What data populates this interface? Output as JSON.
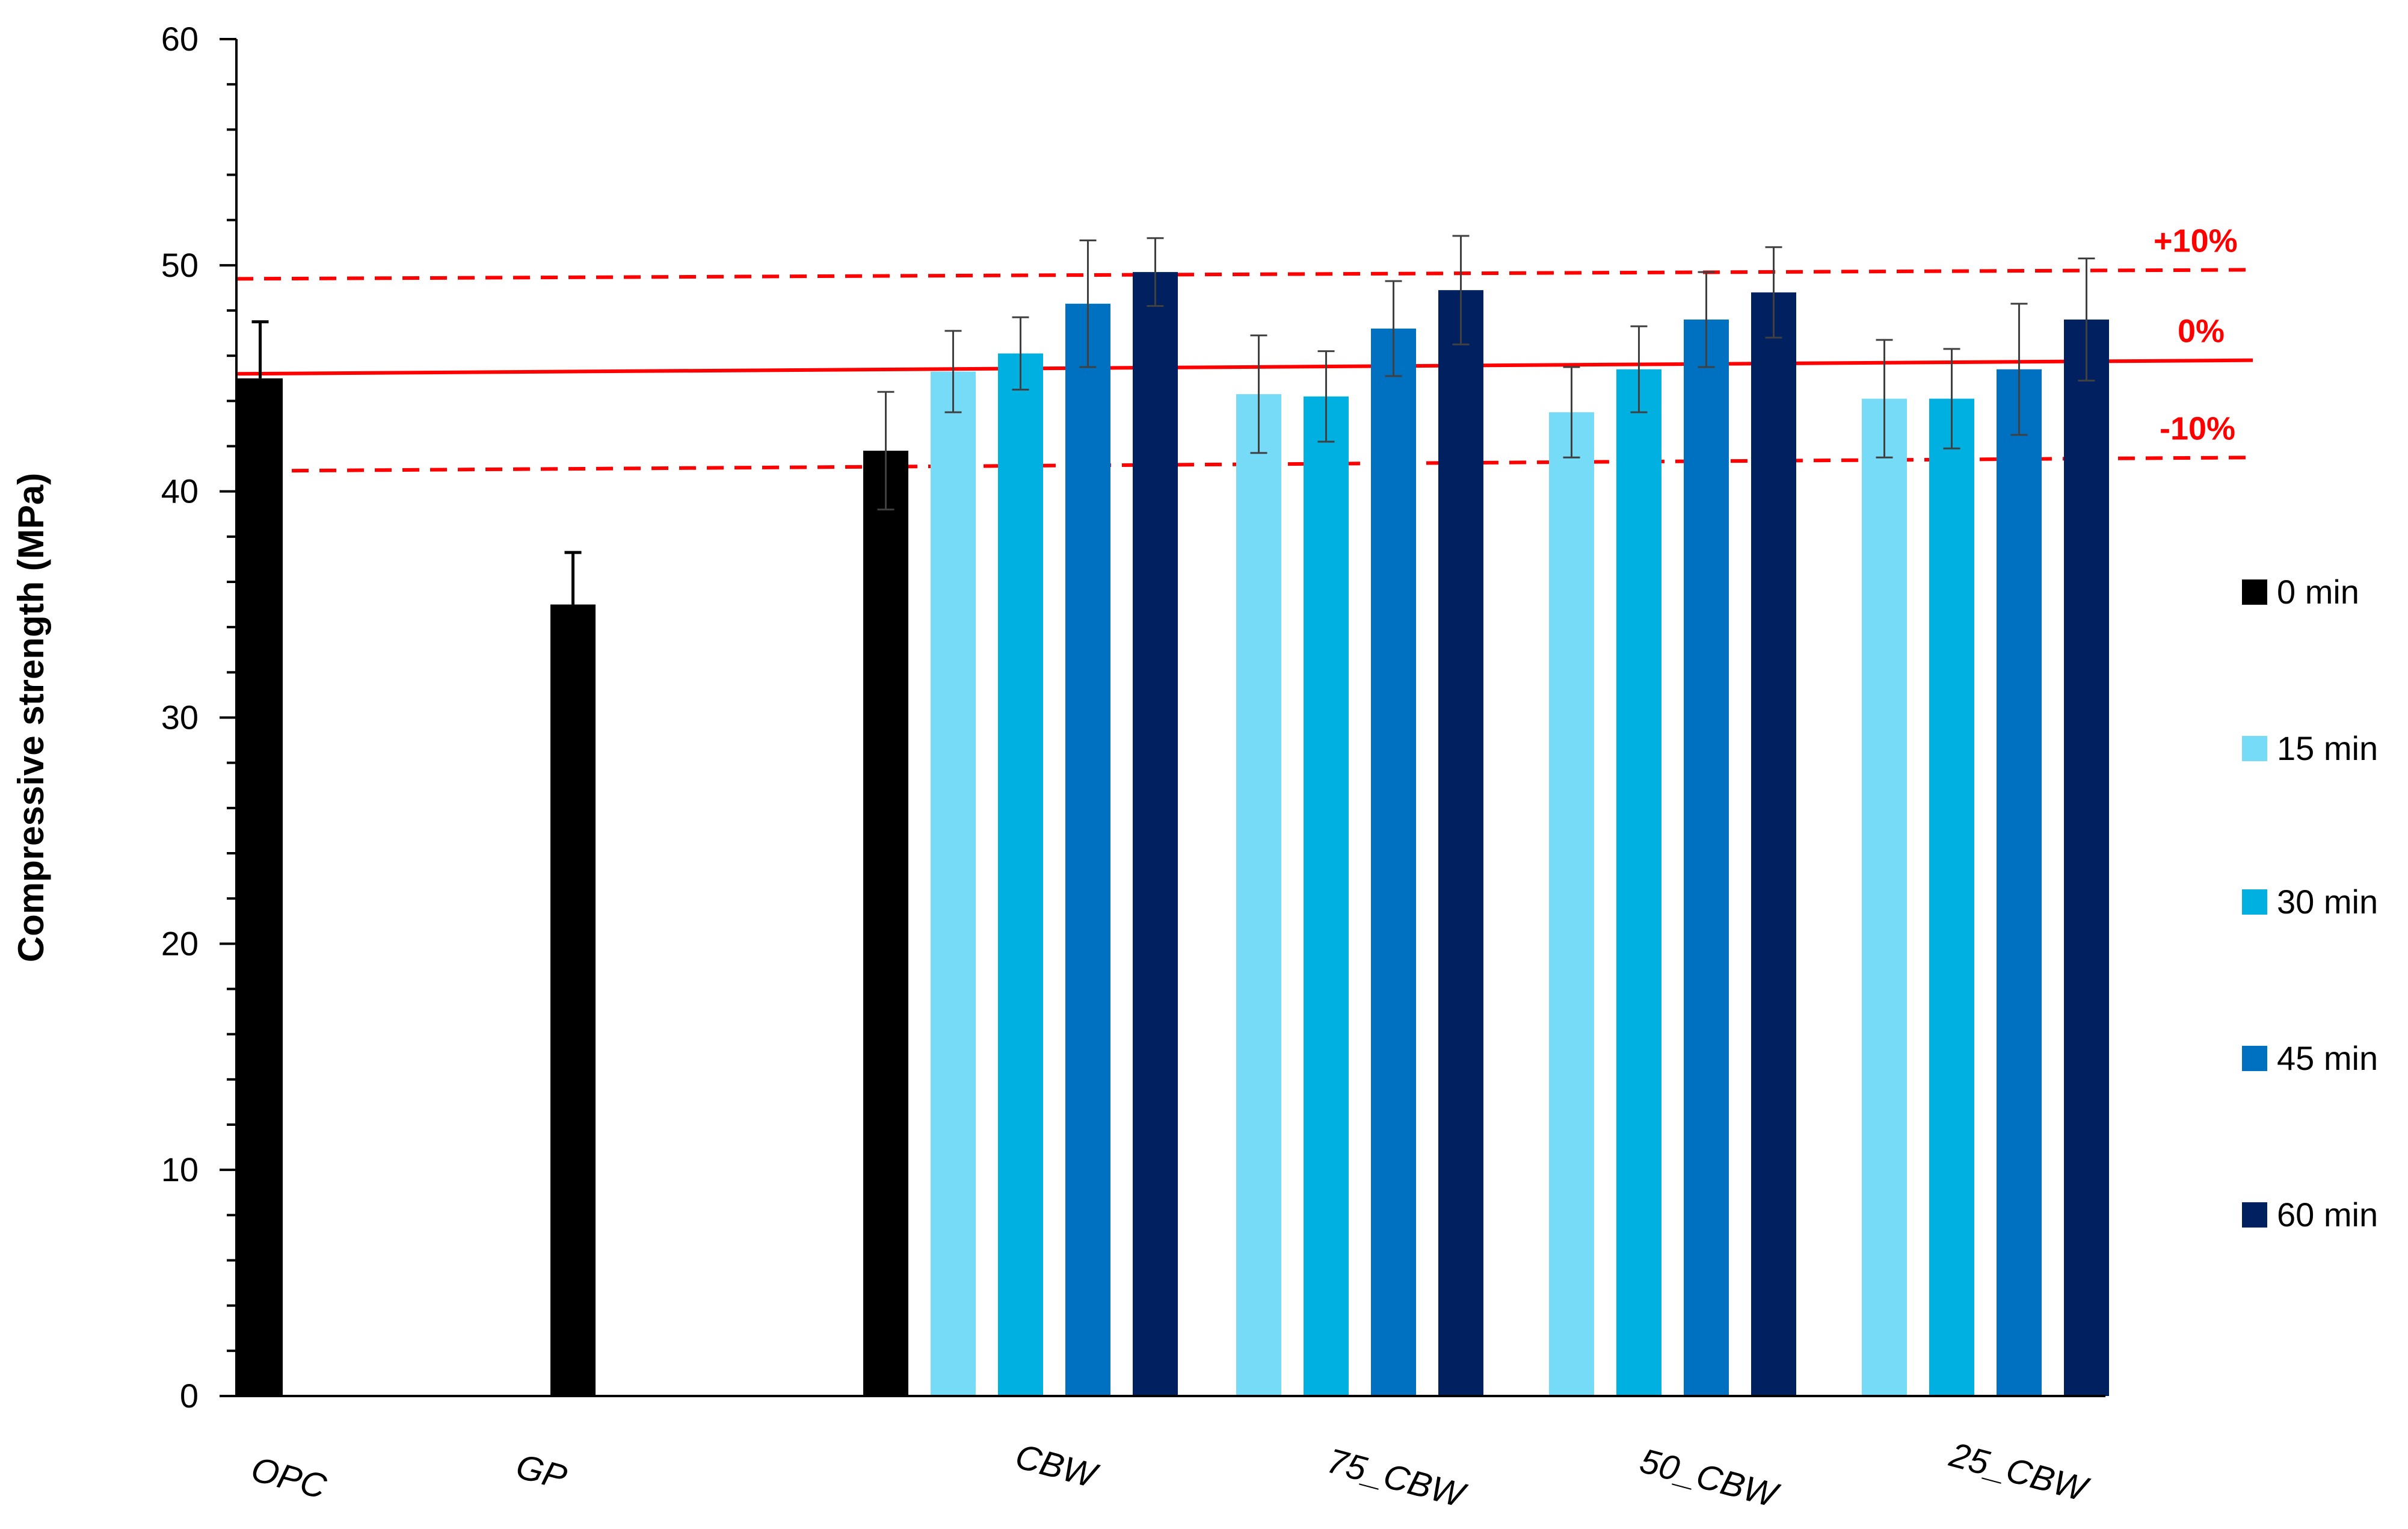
{
  "chart_data": {
    "type": "bar",
    "ylabel": "Compressive strength (MPa)",
    "xlabel": "",
    "ylim": [
      0,
      60
    ],
    "yticks": [
      0,
      10,
      20,
      30,
      40,
      50,
      60
    ],
    "grid": false,
    "legend_position": "right",
    "groups": [
      {
        "label": "OPC",
        "bars": [
          {
            "series": "0 min",
            "value": 45.0,
            "err": 2.5
          }
        ]
      },
      {
        "label": "GP",
        "bars": [
          {
            "series": "0 min",
            "value": 35.0,
            "err": 2.3
          }
        ]
      },
      {
        "label": "CBW",
        "bars": [
          {
            "series": "0 min",
            "value": 41.8,
            "err": 2.6
          },
          {
            "series": "15 min",
            "value": 45.3,
            "err": 1.8
          },
          {
            "series": "30 min",
            "value": 46.1,
            "err": 1.6
          },
          {
            "series": "45 min",
            "value": 48.3,
            "err": 2.8
          },
          {
            "series": "60 min",
            "value": 49.7,
            "err": 1.5
          }
        ]
      },
      {
        "label": "75_CBW",
        "bars": [
          {
            "series": "15 min",
            "value": 44.3,
            "err": 2.6
          },
          {
            "series": "30 min",
            "value": 44.2,
            "err": 2.0
          },
          {
            "series": "45 min",
            "value": 47.2,
            "err": 2.1
          },
          {
            "series": "60 min",
            "value": 48.9,
            "err": 2.4
          }
        ]
      },
      {
        "label": "50_CBW",
        "bars": [
          {
            "series": "15 min",
            "value": 43.5,
            "err": 2.0
          },
          {
            "series": "30 min",
            "value": 45.4,
            "err": 1.9
          },
          {
            "series": "45 min",
            "value": 47.6,
            "err": 2.1
          },
          {
            "series": "60 min",
            "value": 48.8,
            "err": 2.0
          }
        ]
      },
      {
        "label": "25_CBW",
        "bars": [
          {
            "series": "15 min",
            "value": 44.1,
            "err": 2.6
          },
          {
            "series": "30 min",
            "value": 44.1,
            "err": 2.2
          },
          {
            "series": "45 min",
            "value": 45.4,
            "err": 2.9
          },
          {
            "series": "60 min",
            "value": 47.6,
            "err": 2.7
          }
        ]
      }
    ],
    "series": [
      {
        "name": "0 min",
        "color": "#000000"
      },
      {
        "name": "15 min",
        "color": "#75DBF7"
      },
      {
        "name": "30 min",
        "color": "#00B0E0"
      },
      {
        "name": "45 min",
        "color": "#0070C0"
      },
      {
        "name": "60 min",
        "color": "#002060"
      }
    ],
    "reference_lines": [
      {
        "label": "+10%",
        "style": "dashed",
        "y_start": 49.4,
        "y_end": 49.8
      },
      {
        "label": "0%",
        "style": "solid",
        "y_start": 45.2,
        "y_end": 45.8
      },
      {
        "label": "-10%",
        "style": "dashed",
        "y_start": 40.9,
        "y_end": 41.5
      }
    ],
    "colors": {
      "reference": "#ff0000",
      "axis": "#000000",
      "error_bar": "#404040"
    }
  }
}
